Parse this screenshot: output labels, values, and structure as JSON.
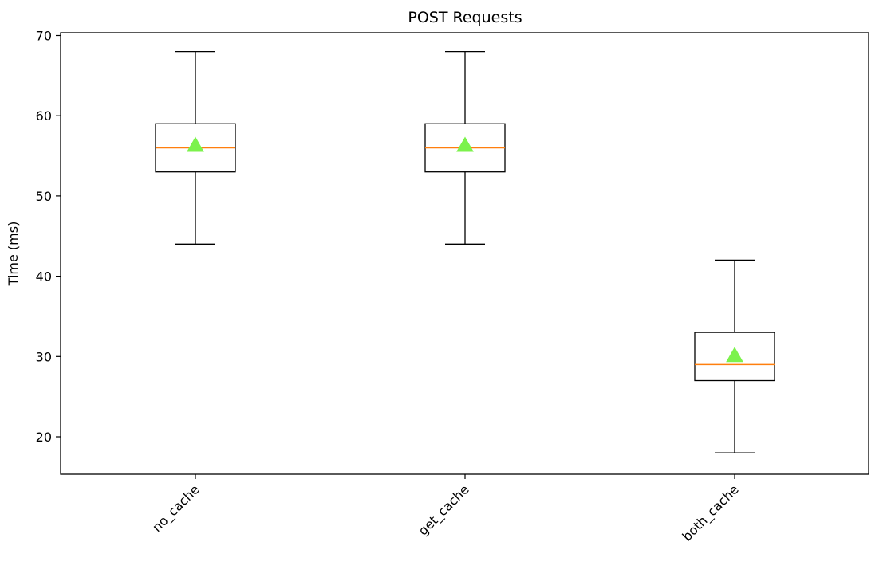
{
  "chart_data": {
    "type": "box",
    "title": "POST Requests",
    "xlabel": "",
    "ylabel": "Time (ms)",
    "ylim": [
      15.5,
      70.5
    ],
    "yticks": [
      20,
      30,
      40,
      50,
      60,
      70
    ],
    "grid": false,
    "legend": "none",
    "categories": [
      "no_cache",
      "get_cache",
      "both_cache"
    ],
    "boxes": [
      {
        "category": "no_cache",
        "whisker_low": 44,
        "q1": 53,
        "median": 56,
        "q3": 59,
        "whisker_high": 68,
        "mean": 56.3
      },
      {
        "category": "get_cache",
        "whisker_low": 44,
        "q1": 53,
        "median": 56,
        "q3": 59,
        "whisker_high": 68,
        "mean": 56.3
      },
      {
        "category": "both_cache",
        "whisker_low": 18,
        "q1": 27,
        "median": 29,
        "q3": 33,
        "whisker_high": 42,
        "mean": 30.1
      }
    ],
    "colors": {
      "box": "#000000",
      "median": "#ff7f0e",
      "mean_marker": "#7cf24c"
    },
    "mean_marker_shape": "triangle-up"
  }
}
